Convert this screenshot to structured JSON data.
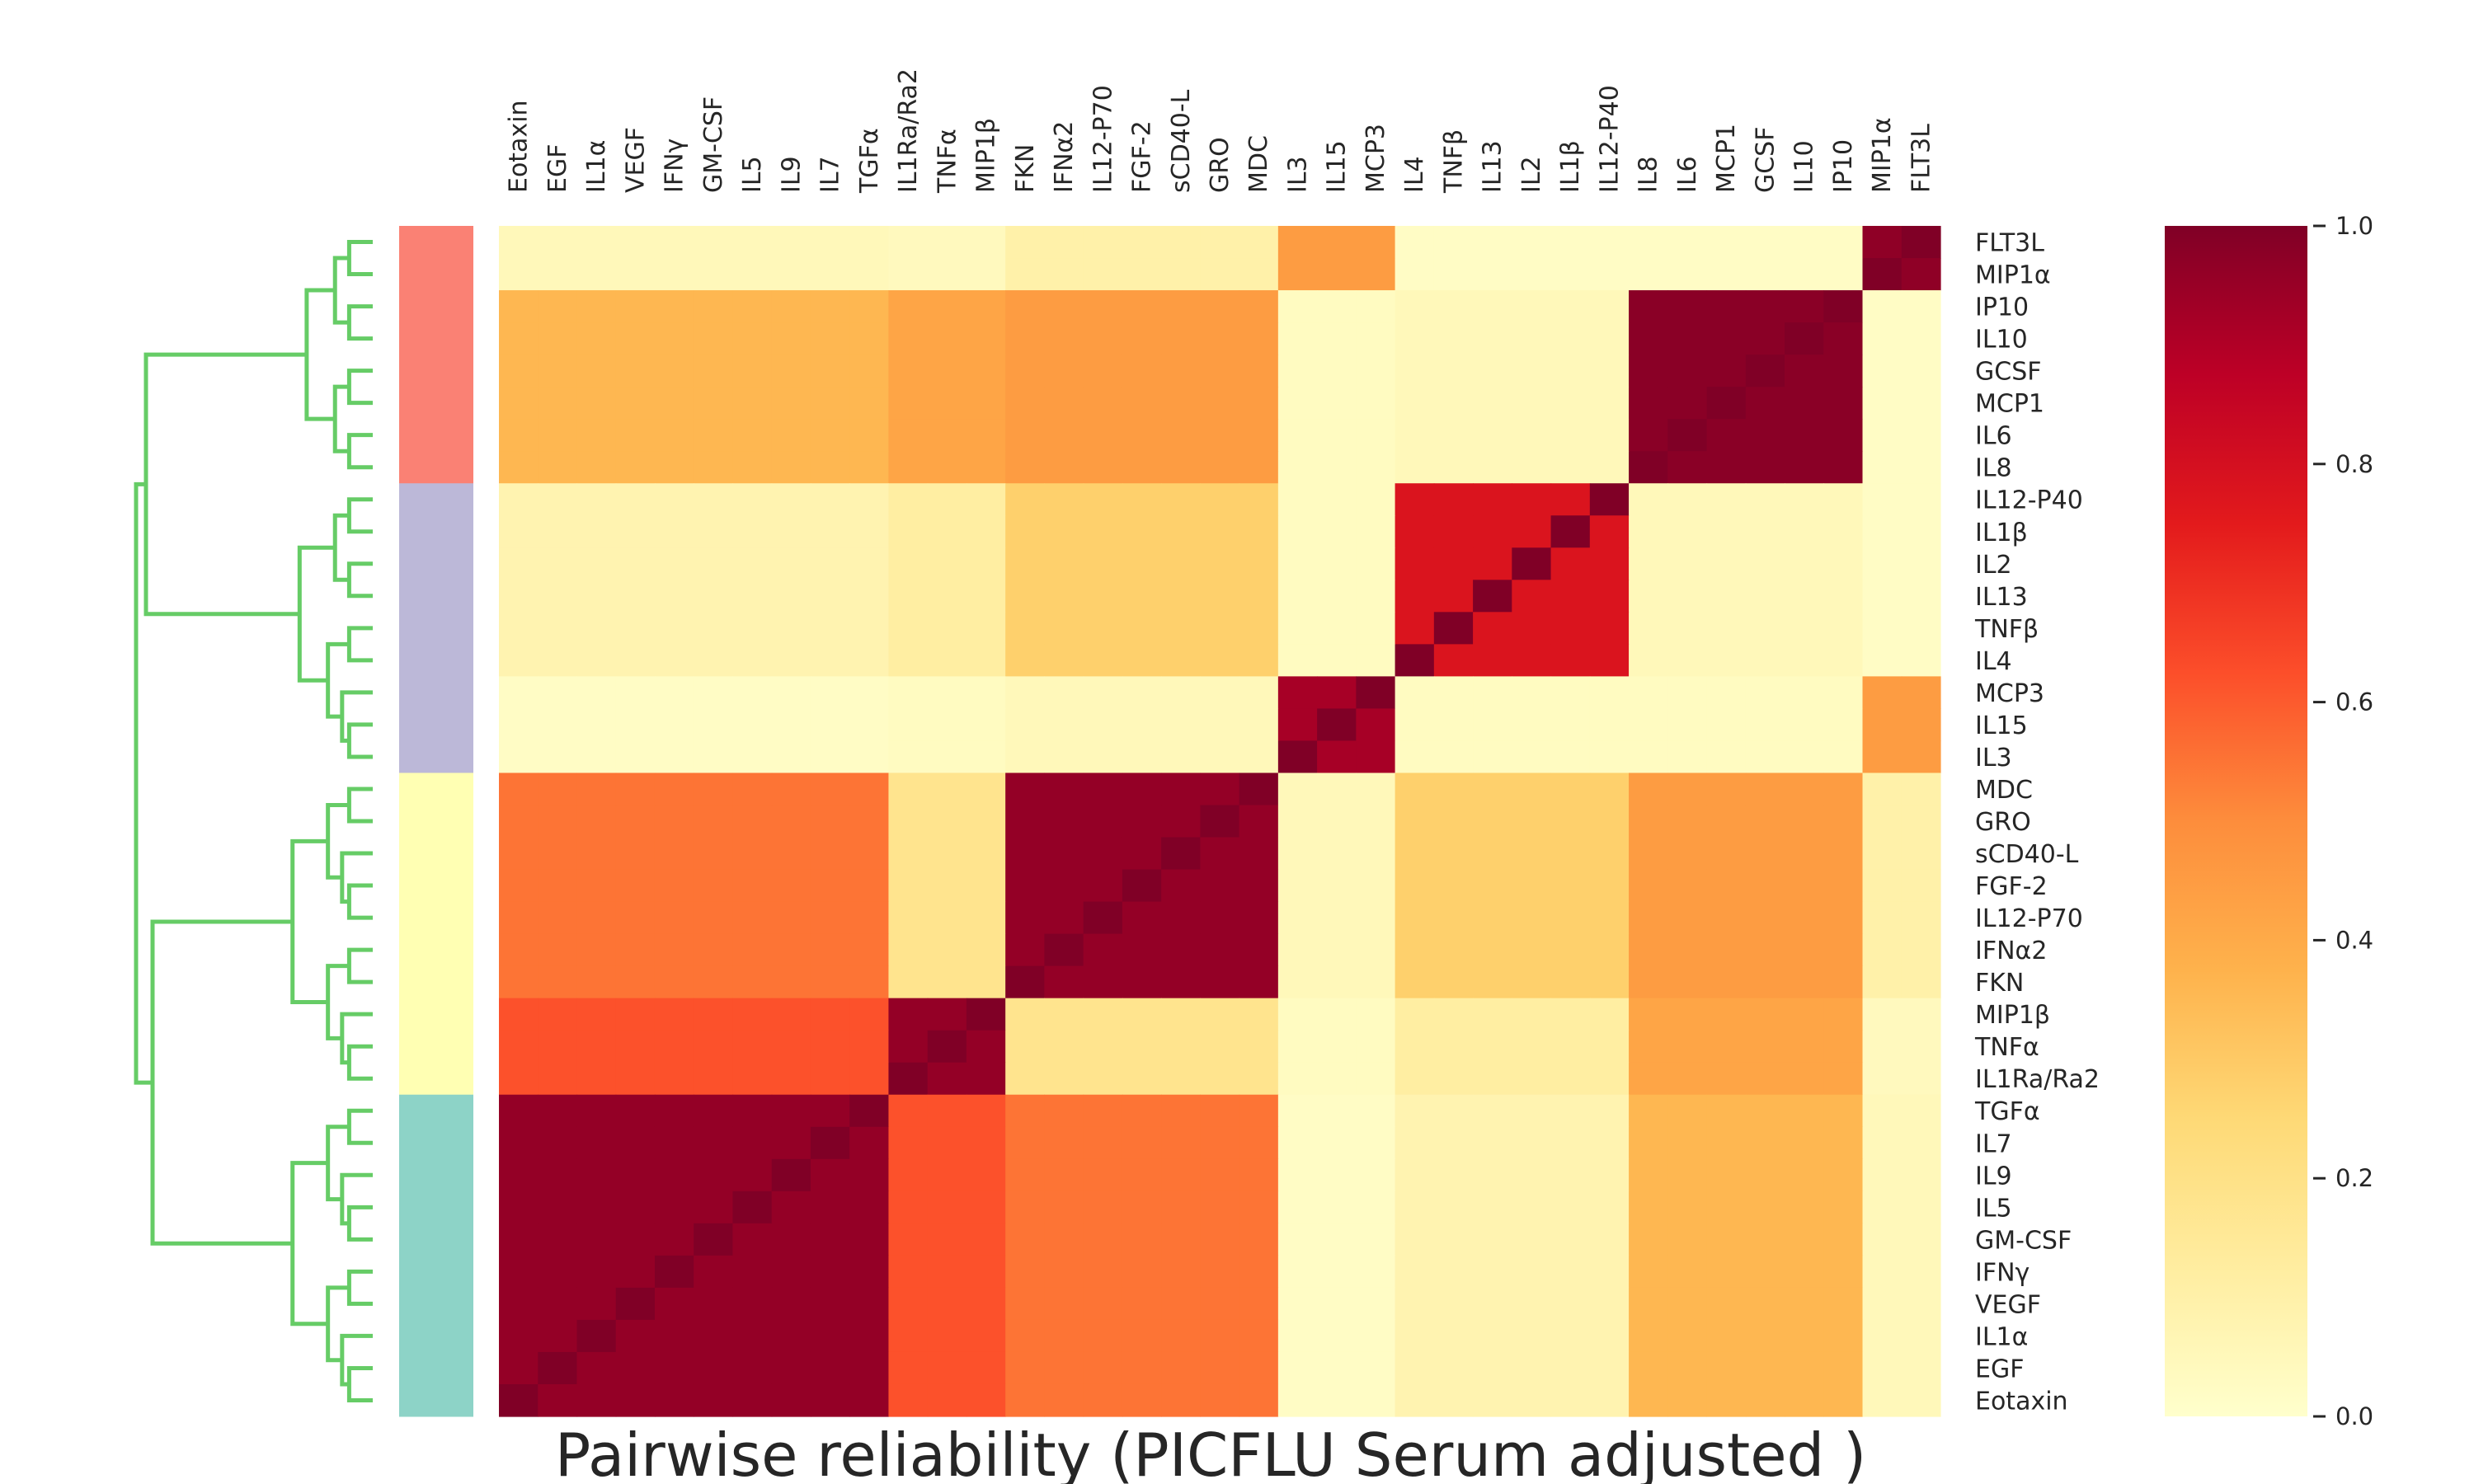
{
  "chart_data": {
    "type": "heatmap",
    "title": "Pairwise reliability (PICFLU Serum adjusted )",
    "col_labels": [
      "Eotaxin",
      "EGF",
      "IL1α",
      "VEGF",
      "IFNγ",
      "GM-CSF",
      "IL5",
      "IL9",
      "IL7",
      "TGFα",
      "IL1Ra/Ra2",
      "TNFα",
      "MIP1β",
      "FKN",
      "IFNα2",
      "IL12-P70",
      "FGF-2",
      "sCD40-L",
      "GRO",
      "MDC",
      "IL3",
      "IL15",
      "MCP3",
      "IL4",
      "TNFβ",
      "IL13",
      "IL2",
      "IL1β",
      "IL12-P40",
      "IL8",
      "IL6",
      "MCP1",
      "GCSF",
      "IL10",
      "IP10",
      "MIP1α",
      "FLT3L"
    ],
    "row_labels": [
      "FLT3L",
      "MIP1α",
      "IP10",
      "IL10",
      "GCSF",
      "MCP1",
      "IL6",
      "IL8",
      "IL12-P40",
      "IL1β",
      "IL2",
      "IL13",
      "TNFβ",
      "IL4",
      "MCP3",
      "IL15",
      "IL3",
      "MDC",
      "GRO",
      "sCD40-L",
      "FGF-2",
      "IL12-P70",
      "IFNα2",
      "FKN",
      "MIP1β",
      "TNFα",
      "IL1Ra/Ra2",
      "TGFα",
      "IL7",
      "IL9",
      "IL5",
      "GM-CSF",
      "IFNγ",
      "VEGF",
      "IL1α",
      "EGF",
      "Eotaxin"
    ],
    "clusters": [
      {
        "color": "#fa8174",
        "members": [
          "FLT3L",
          "MIP1α",
          "IP10",
          "IL10",
          "GCSF",
          "MCP1",
          "IL6",
          "IL8"
        ]
      },
      {
        "color": "#bcb8d8",
        "members": [
          "IL12-P40",
          "IL1β",
          "IL2",
          "IL13",
          "TNFβ",
          "IL4",
          "MCP3",
          "IL15",
          "IL3"
        ]
      },
      {
        "color": "#ffffb3",
        "members": [
          "MDC",
          "GRO",
          "sCD40-L",
          "FGF-2",
          "IL12-P70",
          "IFNα2",
          "FKN",
          "MIP1β",
          "TNFα",
          "IL1Ra/Ra2"
        ]
      },
      {
        "color": "#8dd3c7",
        "members": [
          "TGFα",
          "IL7",
          "IL9",
          "IL5",
          "GM-CSF",
          "IFNγ",
          "VEGF",
          "IL1α",
          "EGF",
          "Eotaxin"
        ]
      }
    ],
    "colorbar": {
      "min": 0.0,
      "max": 1.0,
      "ticks": [
        "0.0",
        "0.2",
        "0.4",
        "0.6",
        "0.8",
        "1.0"
      ]
    },
    "colormap": [
      "#ffffcc",
      "#ffeda0",
      "#fed976",
      "#feb24c",
      "#fd8d3c",
      "#fc4e2a",
      "#e31a1c",
      "#bd0026",
      "#800026"
    ],
    "dendrogram_color": "#66cc66",
    "diagonal_value": 1.0,
    "cell_values_note": [],
    "block_values": [
      [
        0.96,
        0.62,
        0.55,
        0.02,
        0.08,
        0.36,
        0.05
      ],
      [
        0.62,
        0.96,
        0.18,
        0.03,
        0.12,
        0.42,
        0.04
      ],
      [
        0.55,
        0.18,
        0.96,
        0.05,
        0.28,
        0.45,
        0.1
      ],
      [
        0.02,
        0.03,
        0.05,
        0.92,
        0.03,
        0.03,
        0.45
      ],
      [
        0.08,
        0.12,
        0.28,
        0.03,
        0.78,
        0.05,
        0.02
      ],
      [
        0.36,
        0.42,
        0.45,
        0.03,
        0.05,
        0.98,
        0.02
      ],
      [
        0.05,
        0.04,
        0.1,
        0.45,
        0.02,
        0.02,
        0.97
      ]
    ],
    "block_groups": [
      [
        "Eotaxin",
        "EGF",
        "IL1α",
        "VEGF",
        "IFNγ",
        "GM-CSF",
        "IL5",
        "IL9",
        "IL7",
        "TGFα"
      ],
      [
        "IL1Ra/Ra2",
        "TNFα",
        "MIP1β"
      ],
      [
        "FKN",
        "IFNα2",
        "IL12-P70",
        "FGF-2",
        "sCD40-L",
        "GRO",
        "MDC"
      ],
      [
        "IL3",
        "IL15",
        "MCP3"
      ],
      [
        "IL4",
        "TNFβ",
        "IL13",
        "IL2",
        "IL1β",
        "IL12-P40"
      ],
      [
        "IL8",
        "IL6",
        "MCP1",
        "GCSF",
        "IL10",
        "IP10"
      ],
      [
        "MIP1α",
        "FLT3L"
      ]
    ],
    "grid": false,
    "legend_position": "right"
  }
}
